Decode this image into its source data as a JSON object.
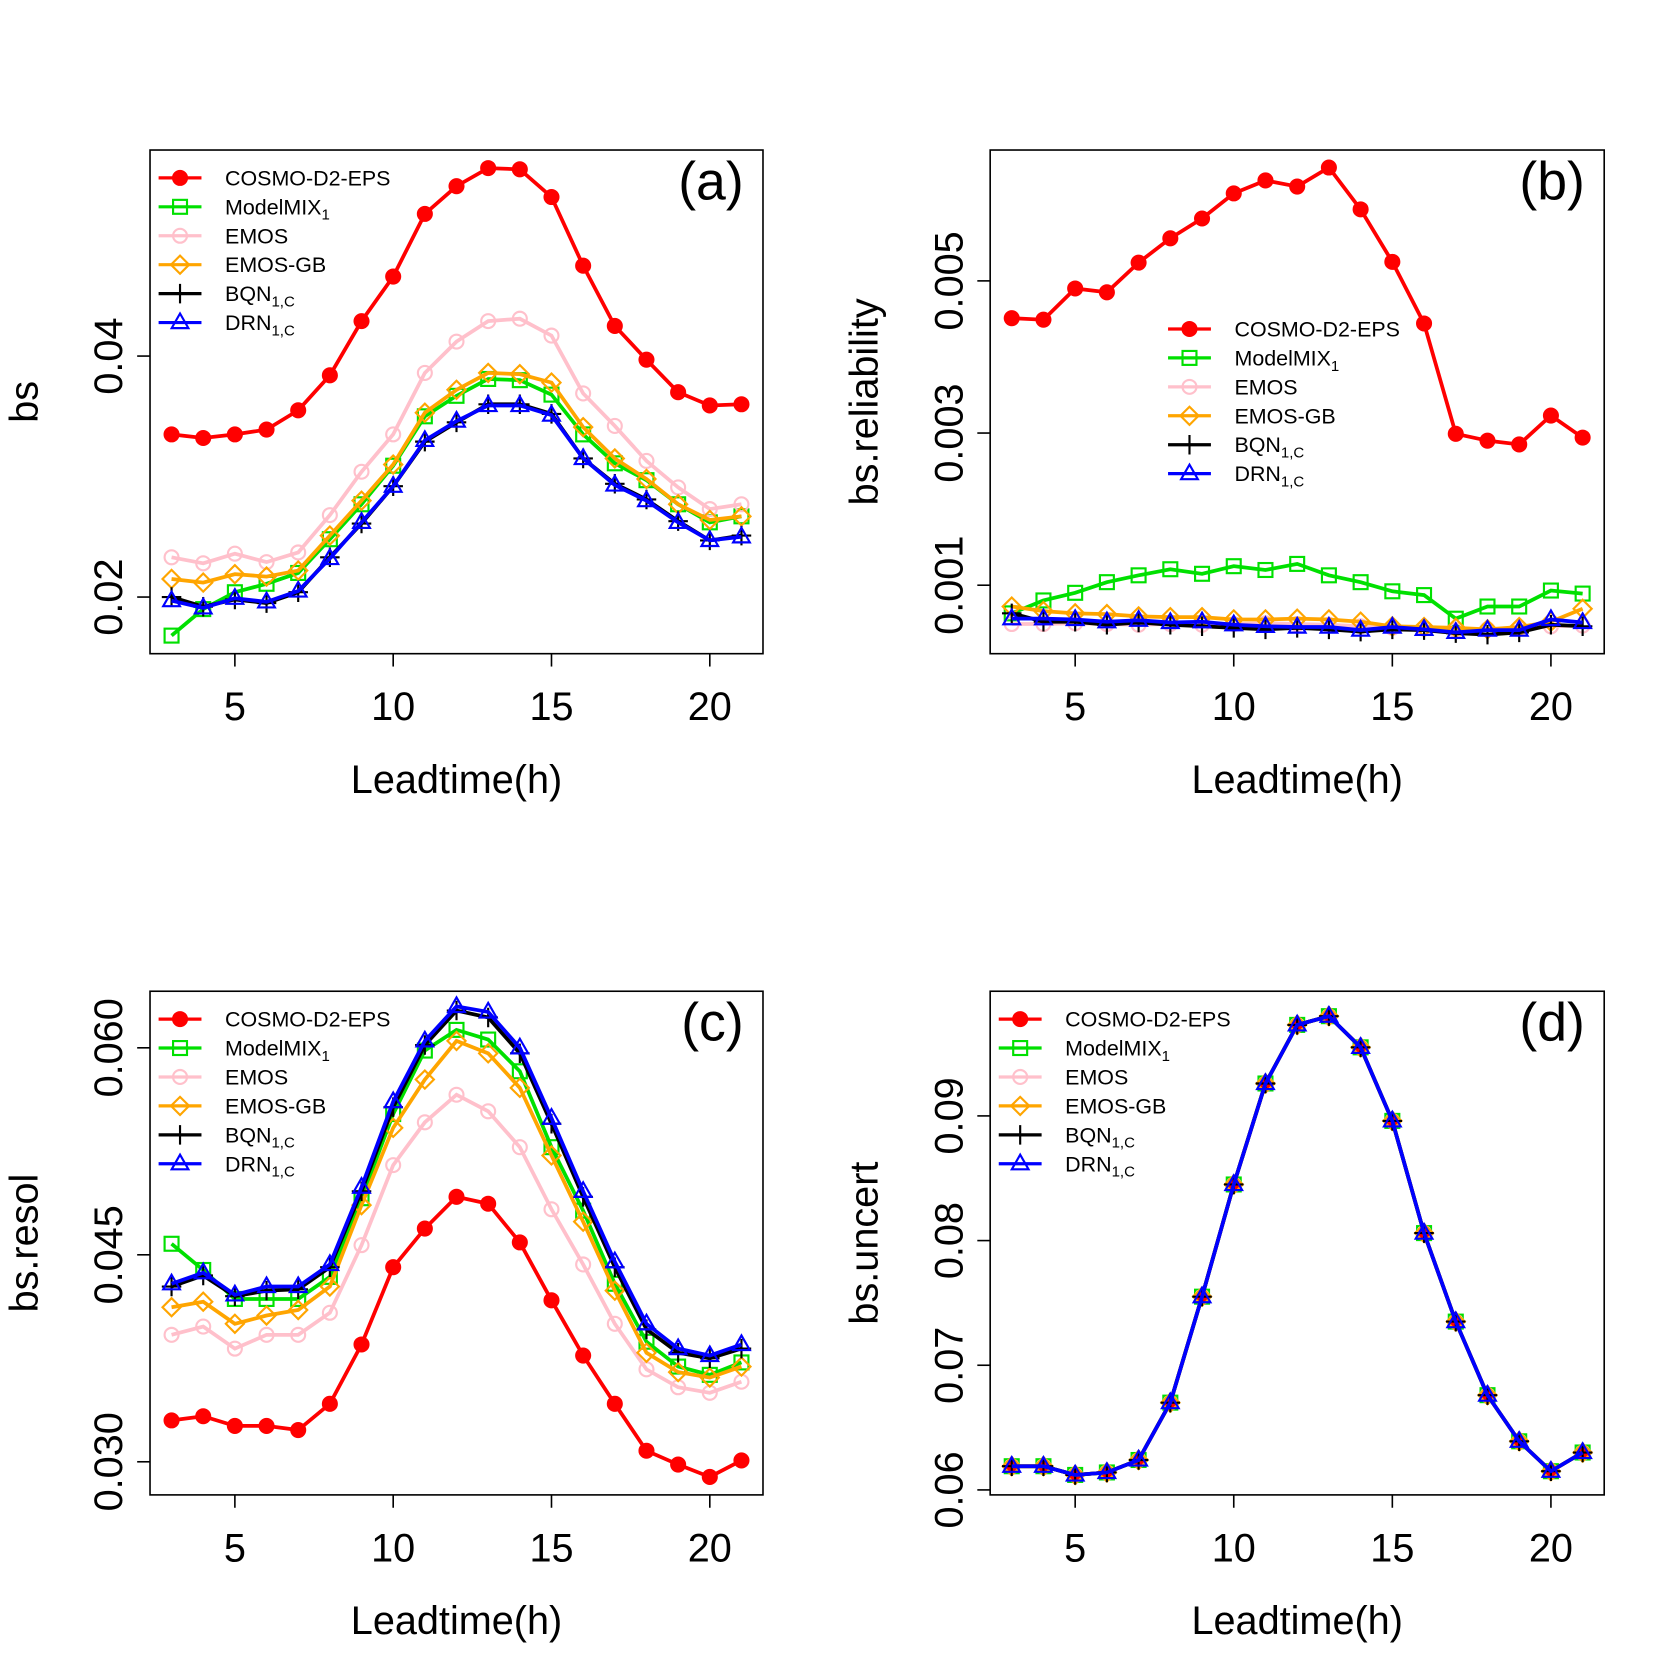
{
  "chart_data": [
    {
      "type": "line",
      "panel_label": "(a)",
      "x_label": "Leadtime(h)",
      "y_label": "bs",
      "legend": "top-left",
      "x": [
        3,
        4,
        5,
        6,
        7,
        8,
        9,
        10,
        11,
        12,
        13,
        14,
        15,
        16,
        17,
        18,
        19,
        20,
        21
      ],
      "xlim": [
        2.32,
        21.68
      ],
      "xticks": [
        5,
        10,
        15,
        20
      ],
      "ylim": [
        0.0153,
        0.0571
      ],
      "yticks": [
        0.02,
        0.04
      ],
      "series": [
        {
          "name": "COSMO-D2-EPS",
          "color": "#ff0000",
          "marker": "filled-circle",
          "values": [
            0.0335,
            0.0332,
            0.0335,
            0.0339,
            0.0355,
            0.0384,
            0.0429,
            0.0466,
            0.0518,
            0.0541,
            0.0556,
            0.0555,
            0.0532,
            0.0475,
            0.0425,
            0.0397,
            0.037,
            0.0359,
            0.036
          ]
        },
        {
          "name": "ModelMIX",
          "subscript": "1",
          "color": "#00e000",
          "marker": "open-square",
          "values": [
            0.0168,
            0.019,
            0.0204,
            0.0211,
            0.022,
            0.0248,
            0.0277,
            0.0309,
            0.035,
            0.0367,
            0.0381,
            0.038,
            0.0368,
            0.0335,
            0.0311,
            0.0297,
            0.0277,
            0.0262,
            0.0267
          ]
        },
        {
          "name": "EMOS",
          "color": "#ffc0cb",
          "marker": "open-circle",
          "values": [
            0.0233,
            0.0228,
            0.0236,
            0.0229,
            0.0237,
            0.0268,
            0.0304,
            0.0335,
            0.0386,
            0.0412,
            0.0429,
            0.0431,
            0.0417,
            0.0369,
            0.0342,
            0.0313,
            0.0291,
            0.0273,
            0.0277
          ]
        },
        {
          "name": "EMOS-GB",
          "color": "#ffa500",
          "marker": "open-diamond",
          "values": [
            0.0215,
            0.0212,
            0.0219,
            0.0217,
            0.0222,
            0.0251,
            0.028,
            0.031,
            0.0353,
            0.0372,
            0.0386,
            0.0385,
            0.0378,
            0.0341,
            0.0315,
            0.0298,
            0.0277,
            0.0264,
            0.0267
          ]
        },
        {
          "name": "BQN",
          "subscript": "1,C",
          "color": "#000000",
          "marker": "plus",
          "values": [
            0.02,
            0.0192,
            0.0198,
            0.0195,
            0.0204,
            0.0233,
            0.0261,
            0.0292,
            0.0329,
            0.0345,
            0.036,
            0.036,
            0.0352,
            0.0315,
            0.0294,
            0.0281,
            0.0263,
            0.0247,
            0.0251
          ]
        },
        {
          "name": "DRN",
          "subscript": "1,C",
          "color": "#0000ff",
          "marker": "open-triangle",
          "values": [
            0.0197,
            0.0191,
            0.0199,
            0.0196,
            0.0205,
            0.0232,
            0.0262,
            0.0292,
            0.033,
            0.0346,
            0.0359,
            0.0359,
            0.0351,
            0.0315,
            0.0293,
            0.028,
            0.0262,
            0.0247,
            0.025
          ]
        }
      ]
    },
    {
      "type": "line",
      "panel_label": "(b)",
      "x_label": "Leadtime(h)",
      "y_label": "bs.reliability",
      "legend": "center",
      "x": [
        3,
        4,
        5,
        6,
        7,
        8,
        9,
        10,
        11,
        12,
        13,
        14,
        15,
        16,
        17,
        18,
        19,
        20,
        21
      ],
      "xlim": [
        2.32,
        21.68
      ],
      "xticks": [
        5,
        10,
        15,
        20
      ],
      "ylim": [
        0.0001,
        0.00672
      ],
      "yticks": [
        0.001,
        0.003,
        0.005
      ],
      "series": [
        {
          "name": "COSMO-D2-EPS",
          "color": "#ff0000",
          "marker": "filled-circle",
          "values": [
            0.00451,
            0.00449,
            0.0049,
            0.00485,
            0.00524,
            0.00556,
            0.00582,
            0.00615,
            0.00632,
            0.00624,
            0.00649,
            0.00594,
            0.00525,
            0.00444,
            0.00299,
            0.0029,
            0.00285,
            0.00323,
            0.00294
          ]
        },
        {
          "name": "ModelMIX",
          "subscript": "1",
          "color": "#00e000",
          "marker": "open-square",
          "values": [
            0.00063,
            0.0008,
            0.0009,
            0.00104,
            0.00113,
            0.00121,
            0.00115,
            0.00125,
            0.0012,
            0.00128,
            0.00113,
            0.00104,
            0.00092,
            0.00087,
            0.00056,
            0.00072,
            0.00072,
            0.00093,
            0.00089
          ]
        },
        {
          "name": "EMOS",
          "color": "#ffc0cb",
          "marker": "open-circle",
          "values": [
            0.00049,
            0.00049,
            0.0005,
            0.00049,
            0.00048,
            0.00049,
            0.00048,
            0.00049,
            0.0005,
            0.00049,
            0.00048,
            0.00046,
            0.00044,
            0.00043,
            0.00041,
            0.00042,
            0.00043,
            0.00046,
            0.00047
          ]
        },
        {
          "name": "EMOS-GB",
          "color": "#ffa500",
          "marker": "open-diamond",
          "values": [
            0.00072,
            0.00066,
            0.00063,
            0.00062,
            0.00059,
            0.00058,
            0.00058,
            0.00055,
            0.00055,
            0.00056,
            0.00055,
            0.00052,
            0.00046,
            0.00045,
            0.00044,
            0.00042,
            0.00045,
            0.00052,
            0.00069
          ]
        },
        {
          "name": "BQN",
          "subscript": "1,C",
          "color": "#000000",
          "marker": "plus",
          "values": [
            0.00063,
            0.00052,
            0.00052,
            0.00048,
            0.00051,
            0.00048,
            0.00046,
            0.00044,
            0.00042,
            0.00044,
            0.00042,
            0.00039,
            0.00042,
            0.00041,
            0.00037,
            0.00035,
            0.00038,
            0.00048,
            0.00046
          ]
        },
        {
          "name": "DRN",
          "subscript": "1,C",
          "color": "#0000ff",
          "marker": "open-triangle",
          "values": [
            0.00056,
            0.00056,
            0.00055,
            0.00052,
            0.00054,
            0.00051,
            0.00052,
            0.00048,
            0.00046,
            0.00045,
            0.00045,
            0.00041,
            0.00045,
            0.00042,
            0.00038,
            0.00041,
            0.00041,
            0.00055,
            0.00051
          ]
        }
      ]
    },
    {
      "type": "line",
      "panel_label": "(c)",
      "x_label": "Leadtime(h)",
      "y_label": "bs.resol",
      "legend": "top-left",
      "x": [
        3,
        4,
        5,
        6,
        7,
        8,
        9,
        10,
        11,
        12,
        13,
        14,
        15,
        16,
        17,
        18,
        19,
        20,
        21
      ],
      "xlim": [
        2.32,
        21.68
      ],
      "xticks": [
        5,
        10,
        15,
        20
      ],
      "ylim": [
        0.0276,
        0.0641
      ],
      "yticks": [
        {
          "value": 0.03,
          "label": "0.030"
        },
        0.045,
        {
          "value": 0.06,
          "label": "0.060"
        }
      ],
      "series": [
        {
          "name": "COSMO-D2-EPS",
          "color": "#ff0000",
          "marker": "filled-circle",
          "values": [
            0.033,
            0.0333,
            0.0326,
            0.0326,
            0.0323,
            0.0342,
            0.0385,
            0.0441,
            0.0469,
            0.0492,
            0.0487,
            0.0459,
            0.0417,
            0.0377,
            0.0342,
            0.0308,
            0.0298,
            0.0289,
            0.0301
          ]
        },
        {
          "name": "ModelMIX",
          "subscript": "1",
          "color": "#00e000",
          "marker": "open-square",
          "values": [
            0.0458,
            0.0439,
            0.0418,
            0.0418,
            0.0418,
            0.0434,
            0.0491,
            0.0552,
            0.0598,
            0.0613,
            0.0606,
            0.0583,
            0.0528,
            0.0482,
            0.0429,
            0.0387,
            0.0369,
            0.0363,
            0.0372
          ]
        },
        {
          "name": "EMOS",
          "color": "#ffc0cb",
          "marker": "open-circle",
          "values": [
            0.0392,
            0.0398,
            0.0382,
            0.0392,
            0.0392,
            0.0408,
            0.0457,
            0.0515,
            0.0546,
            0.0566,
            0.0554,
            0.0528,
            0.0483,
            0.0443,
            0.04,
            0.0367,
            0.0354,
            0.035,
            0.0358
          ]
        },
        {
          "name": "EMOS-GB",
          "color": "#ffa500",
          "marker": "open-diamond",
          "values": [
            0.0412,
            0.0416,
            0.04,
            0.0406,
            0.041,
            0.0427,
            0.0486,
            0.0542,
            0.0577,
            0.0605,
            0.0596,
            0.0571,
            0.0522,
            0.0474,
            0.0424,
            0.0379,
            0.0365,
            0.0361,
            0.0369
          ]
        },
        {
          "name": "BQN",
          "subscript": "1,C",
          "color": "#000000",
          "marker": "plus",
          "values": [
            0.0427,
            0.0435,
            0.042,
            0.0424,
            0.0425,
            0.0441,
            0.0496,
            0.0557,
            0.0602,
            0.0627,
            0.0622,
            0.0596,
            0.0545,
            0.0492,
            0.0441,
            0.0396,
            0.0379,
            0.0375,
            0.0382
          ]
        },
        {
          "name": "DRN",
          "subscript": "1,C",
          "color": "#0000ff",
          "marker": "open-triangle",
          "values": [
            0.0429,
            0.0437,
            0.0421,
            0.0427,
            0.0427,
            0.0443,
            0.0499,
            0.0561,
            0.0605,
            0.063,
            0.0626,
            0.06,
            0.0549,
            0.0496,
            0.0445,
            0.04,
            0.0382,
            0.0377,
            0.0385
          ]
        }
      ]
    },
    {
      "type": "line",
      "panel_label": "(d)",
      "x_label": "Leadtime(h)",
      "y_label": "bs.uncert",
      "legend": "top-left",
      "x": [
        3,
        4,
        5,
        6,
        7,
        8,
        9,
        10,
        11,
        12,
        13,
        14,
        15,
        16,
        17,
        18,
        19,
        20,
        21
      ],
      "xlim": [
        2.32,
        21.68
      ],
      "xticks": [
        5,
        10,
        15,
        20
      ],
      "ylim": [
        0.0596,
        0.1
      ],
      "yticks": [
        0.06,
        0.07,
        0.08,
        0.09
      ],
      "series": [
        {
          "name": "COSMO-D2-EPS",
          "color": "#ff0000",
          "marker": "filled-circle",
          "values": [
            0.0619,
            0.0619,
            0.0612,
            0.0614,
            0.0624,
            0.067,
            0.0755,
            0.0845,
            0.0926,
            0.0973,
            0.098,
            0.0955,
            0.0896,
            0.0806,
            0.0735,
            0.0676,
            0.0639,
            0.0615,
            0.063
          ]
        },
        {
          "name": "ModelMIX",
          "subscript": "1",
          "color": "#00e000",
          "marker": "open-square",
          "values": [
            0.0619,
            0.0619,
            0.0612,
            0.0614,
            0.0624,
            0.067,
            0.0755,
            0.0845,
            0.0926,
            0.0973,
            0.098,
            0.0955,
            0.0896,
            0.0806,
            0.0735,
            0.0676,
            0.0639,
            0.0615,
            0.063
          ]
        },
        {
          "name": "EMOS",
          "color": "#ffc0cb",
          "marker": "open-circle",
          "values": [
            0.0619,
            0.0619,
            0.0612,
            0.0614,
            0.0624,
            0.067,
            0.0755,
            0.0845,
            0.0926,
            0.0973,
            0.098,
            0.0955,
            0.0896,
            0.0806,
            0.0735,
            0.0676,
            0.0639,
            0.0615,
            0.063
          ]
        },
        {
          "name": "EMOS-GB",
          "color": "#ffa500",
          "marker": "open-diamond",
          "values": [
            0.0619,
            0.0619,
            0.0612,
            0.0614,
            0.0624,
            0.067,
            0.0755,
            0.0845,
            0.0926,
            0.0973,
            0.098,
            0.0955,
            0.0896,
            0.0806,
            0.0735,
            0.0676,
            0.0639,
            0.0615,
            0.063
          ]
        },
        {
          "name": "BQN",
          "subscript": "1,C",
          "color": "#000000",
          "marker": "plus",
          "values": [
            0.0619,
            0.0619,
            0.0612,
            0.0614,
            0.0624,
            0.067,
            0.0755,
            0.0845,
            0.0926,
            0.0973,
            0.098,
            0.0955,
            0.0896,
            0.0806,
            0.0735,
            0.0676,
            0.0639,
            0.0615,
            0.063
          ]
        },
        {
          "name": "DRN",
          "subscript": "1,C",
          "color": "#0000ff",
          "marker": "open-triangle",
          "values": [
            0.0619,
            0.0619,
            0.0612,
            0.0614,
            0.0624,
            0.067,
            0.0755,
            0.0845,
            0.0926,
            0.0973,
            0.098,
            0.0955,
            0.0896,
            0.0806,
            0.0735,
            0.0676,
            0.0639,
            0.0615,
            0.063
          ]
        }
      ]
    }
  ]
}
